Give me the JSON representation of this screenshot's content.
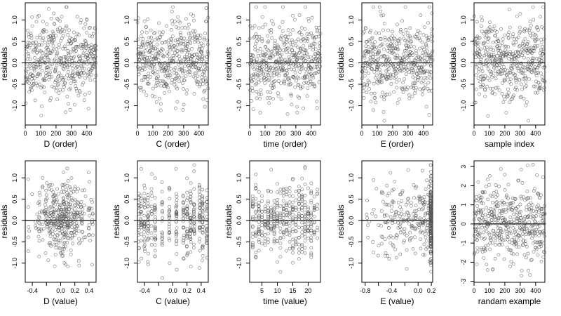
{
  "chart_data": [
    {
      "type": "scatter",
      "xlabel": "D (order)",
      "ylabel": "residuals",
      "xlim": [
        0,
        460
      ],
      "ylim": [
        -1.45,
        1.4
      ],
      "xticks": [
        0,
        100,
        200,
        300,
        400
      ],
      "yticks": [
        1.0,
        0.5,
        0.0,
        -0.5,
        -1.0
      ],
      "ytick_labels": [
        "1.0",
        "0.5",
        "0.0",
        "-0.5",
        "-1.0"
      ],
      "zero_line": 0,
      "n": 460,
      "dist": "order",
      "seed": 11
    },
    {
      "type": "scatter",
      "xlabel": "C (order)",
      "ylabel": "residuals",
      "xlim": [
        0,
        460
      ],
      "ylim": [
        -1.45,
        1.4
      ],
      "xticks": [
        0,
        100,
        200,
        300,
        400
      ],
      "yticks": [
        1.0,
        0.5,
        0.0,
        -0.5,
        -1.0
      ],
      "ytick_labels": [
        "1.0",
        "0.5",
        "0.0",
        "-0.5",
        "-1.0"
      ],
      "zero_line": 0,
      "n": 460,
      "dist": "order",
      "seed": 23
    },
    {
      "type": "scatter",
      "xlabel": "time (order)",
      "ylabel": "residuals",
      "xlim": [
        0,
        460
      ],
      "ylim": [
        -1.45,
        1.4
      ],
      "xticks": [
        0,
        100,
        200,
        300,
        400
      ],
      "yticks": [
        1.0,
        0.5,
        0.0,
        -0.5,
        -1.0
      ],
      "ytick_labels": [
        "1.0",
        "0.5",
        "0.0",
        "-0.5",
        "-1.0"
      ],
      "zero_line": 0,
      "n": 460,
      "dist": "order",
      "seed": 37
    },
    {
      "type": "scatter",
      "xlabel": "E (order)",
      "ylabel": "residuals",
      "xlim": [
        0,
        460
      ],
      "ylim": [
        -1.45,
        1.4
      ],
      "xticks": [
        0,
        100,
        200,
        300,
        400
      ],
      "yticks": [
        1.0,
        0.5,
        0.0,
        -0.5,
        -1.0
      ],
      "ytick_labels": [
        "1.0",
        "0.5",
        "0.0",
        "-0.5",
        "-1.0"
      ],
      "zero_line": 0,
      "n": 460,
      "dist": "order",
      "seed": 41
    },
    {
      "type": "scatter",
      "xlabel": "sample index",
      "ylabel": "residuals",
      "xlim": [
        0,
        460
      ],
      "ylim": [
        -1.45,
        1.4
      ],
      "xticks": [
        0,
        100,
        200,
        300,
        400
      ],
      "yticks": [
        1.0,
        0.5,
        0.0,
        -0.5,
        -1.0
      ],
      "ytick_labels": [
        "1.0",
        "0.5",
        "0.0",
        "-0.5",
        "-1.0"
      ],
      "zero_line": 0,
      "n": 460,
      "dist": "order",
      "seed": 53
    },
    {
      "type": "scatter",
      "xlabel": "D (value)",
      "ylabel": "residuals",
      "xlim": [
        -0.5,
        0.5
      ],
      "ylim": [
        -1.45,
        1.4
      ],
      "xticks": [
        -0.4,
        -0.2,
        0,
        0.2,
        0.4
      ],
      "xtick_labels": [
        "-0.4",
        "",
        "0.0",
        "0.2",
        "0.4"
      ],
      "yticks": [
        1.0,
        0.5,
        0.0,
        -0.5,
        -1.0
      ],
      "ytick_labels": [
        "1.0",
        "0.5",
        "0.0",
        "-0.5",
        "-1.0"
      ],
      "zero_line": 0,
      "n": 420,
      "dist": "value_D",
      "seed": 61
    },
    {
      "type": "scatter",
      "xlabel": "C (value)",
      "ylabel": "residuals",
      "xlim": [
        -0.5,
        0.5
      ],
      "ylim": [
        -1.45,
        1.4
      ],
      "xticks": [
        -0.4,
        -0.2,
        0,
        0.2,
        0.4
      ],
      "xtick_labels": [
        "-0.4",
        "",
        "0.0",
        "0.2",
        "0.4"
      ],
      "yticks": [
        1.0,
        0.5,
        0.0,
        -0.5,
        -1.0
      ],
      "ytick_labels": [
        "1.0",
        "0.5",
        "0.0",
        "-0.5",
        "-1.0"
      ],
      "zero_line": 0,
      "n": 420,
      "dist": "value_C",
      "seed": 67
    },
    {
      "type": "scatter",
      "xlabel": "time (value)",
      "ylabel": "residuals",
      "xlim": [
        1,
        24
      ],
      "ylim": [
        -1.45,
        1.4
      ],
      "xticks": [
        5,
        10,
        15,
        20
      ],
      "xtick_labels": [
        "5",
        "10",
        "15",
        "20"
      ],
      "yticks": [
        1.0,
        0.5,
        0.0,
        -0.5,
        -1.0
      ],
      "ytick_labels": [
        "1.0",
        "0.5",
        "0.0",
        "-0.5",
        "-1.0"
      ],
      "zero_line": 0,
      "n": 420,
      "dist": "value_time",
      "seed": 71
    },
    {
      "type": "scatter",
      "xlabel": "E (value)",
      "ylabel": "residuals",
      "xlim": [
        -0.85,
        0.22
      ],
      "ylim": [
        -1.45,
        1.4
      ],
      "xticks": [
        -0.8,
        -0.6,
        -0.4,
        -0.2,
        0.0,
        0.2
      ],
      "xtick_labels": [
        "-0.8",
        "",
        "-0.4",
        "",
        "0.0",
        "0.2"
      ],
      "yticks": [
        1.0,
        0.5,
        0.0,
        -0.5,
        -1.0
      ],
      "ytick_labels": [
        "1.0",
        "0.5",
        "0.0",
        "-0.5",
        "-1.0"
      ],
      "zero_line": 0,
      "n": 420,
      "dist": "value_E",
      "seed": 79
    },
    {
      "type": "scatter",
      "xlabel": "randam example",
      "ylabel": "residuals",
      "xlim": [
        0,
        460
      ],
      "ylim": [
        -3.05,
        3.3
      ],
      "xticks": [
        0,
        100,
        200,
        300,
        400
      ],
      "yticks": [
        3,
        2,
        1,
        0,
        -1,
        -2,
        -3
      ],
      "ytick_labels": [
        "3",
        "2",
        "1",
        "0",
        "-1",
        "-2",
        "-3"
      ],
      "zero_line": 0,
      "n": 460,
      "dist": "random",
      "seed": 97
    }
  ]
}
